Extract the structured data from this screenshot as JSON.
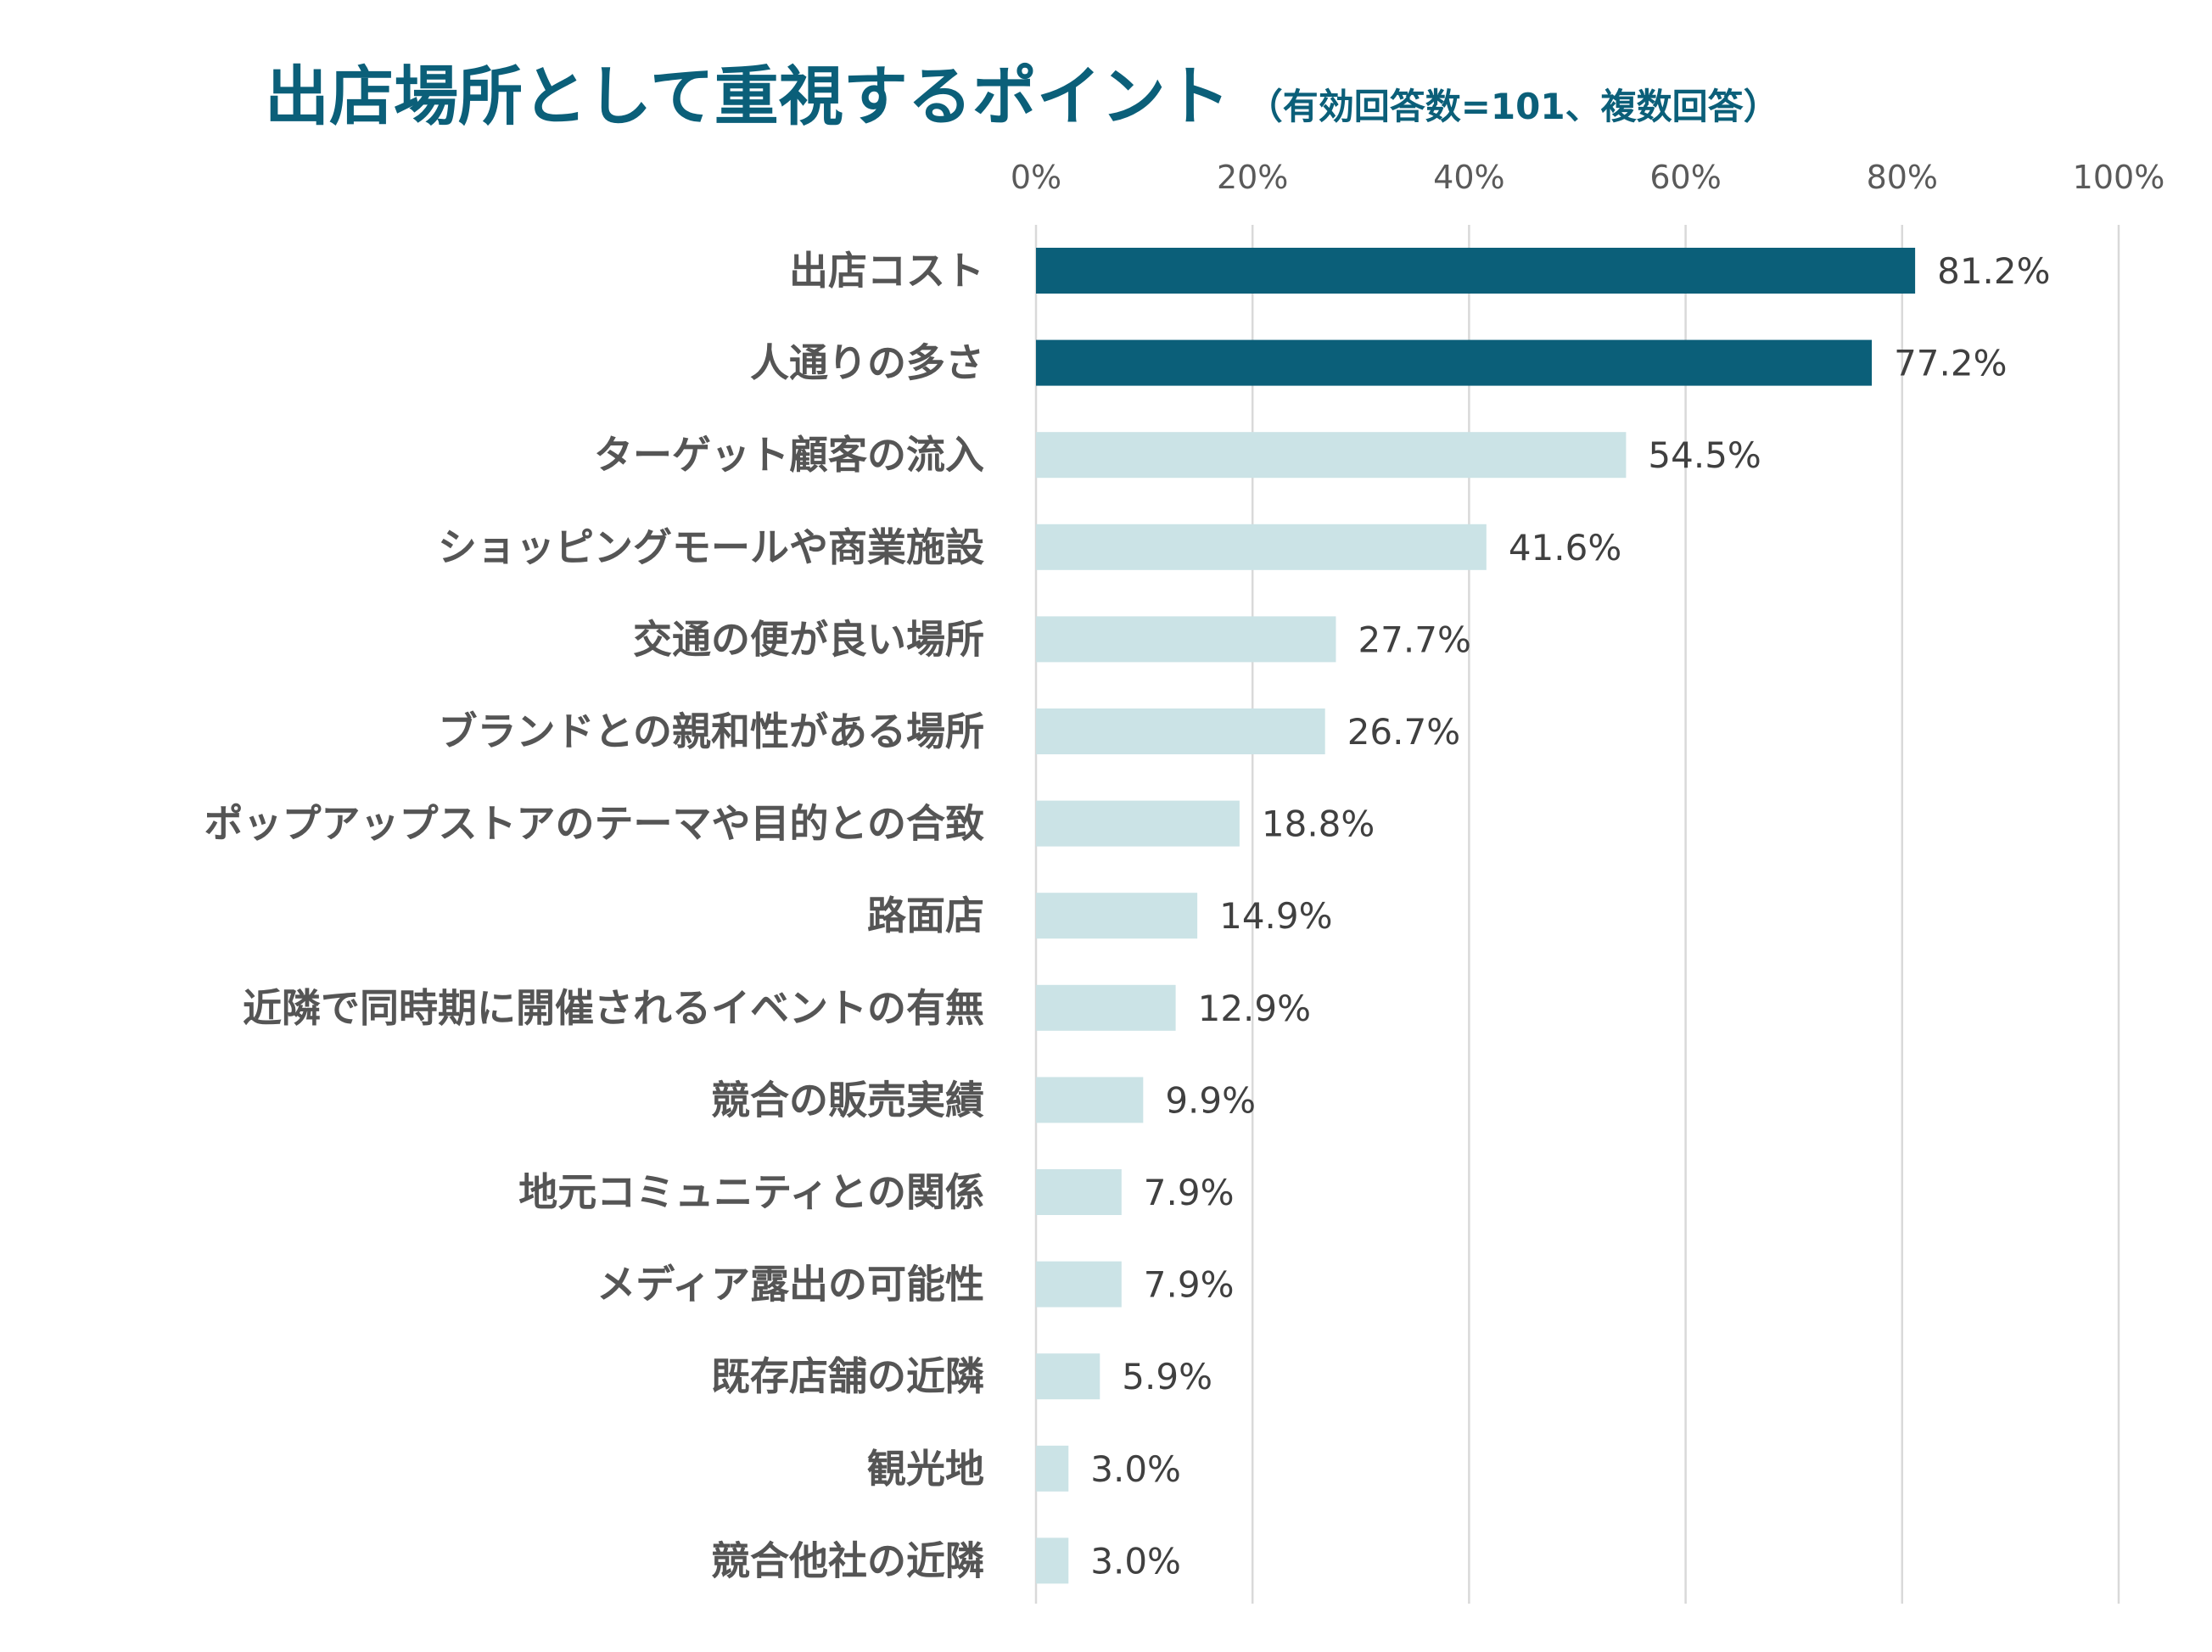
{
  "chart_data": {
    "type": "bar",
    "orientation": "horizontal",
    "title": "出店場所として重視するポイント",
    "subtitle": "（有効回答数=101、複数回答）",
    "xlabel": "",
    "ylabel": "",
    "xlim": [
      0,
      100
    ],
    "x_ticks": [
      "0%",
      "20%",
      "40%",
      "60%",
      "80%",
      "100%"
    ],
    "x_tick_values": [
      0,
      20,
      40,
      60,
      80,
      100
    ],
    "grid": true,
    "legend": "none",
    "highlight_color": "#0b5f79",
    "base_color": "#cbe3e6",
    "categories": [
      "出店コスト",
      "人通りの多さ",
      "ターゲット顧客の流入",
      "ショッピングモールや商業施設",
      "交通の便が良い場所",
      "ブランドとの親和性がある場所",
      "ポップアップストアのテーマや目的との合致",
      "路面店",
      "近隣で同時期に開催されるイベントの有無",
      "競合の販売実績",
      "地元コミュニティとの関係",
      "メディア露出の可能性",
      "既存店舗の近隣",
      "観光地",
      "競合他社の近隣"
    ],
    "values": [
      81.2,
      77.2,
      54.5,
      41.6,
      27.7,
      26.7,
      18.8,
      14.9,
      12.9,
      9.9,
      7.9,
      7.9,
      5.9,
      3.0,
      3.0
    ],
    "value_labels": [
      "81.2%",
      "77.2%",
      "54.5%",
      "41.6%",
      "27.7%",
      "26.7%",
      "18.8%",
      "14.9%",
      "12.9%",
      "9.9%",
      "7.9%",
      "7.9%",
      "5.9%",
      "3.0%",
      "3.0%"
    ],
    "highlighted": [
      true,
      true,
      false,
      false,
      false,
      false,
      false,
      false,
      false,
      false,
      false,
      false,
      false,
      false,
      false
    ]
  }
}
